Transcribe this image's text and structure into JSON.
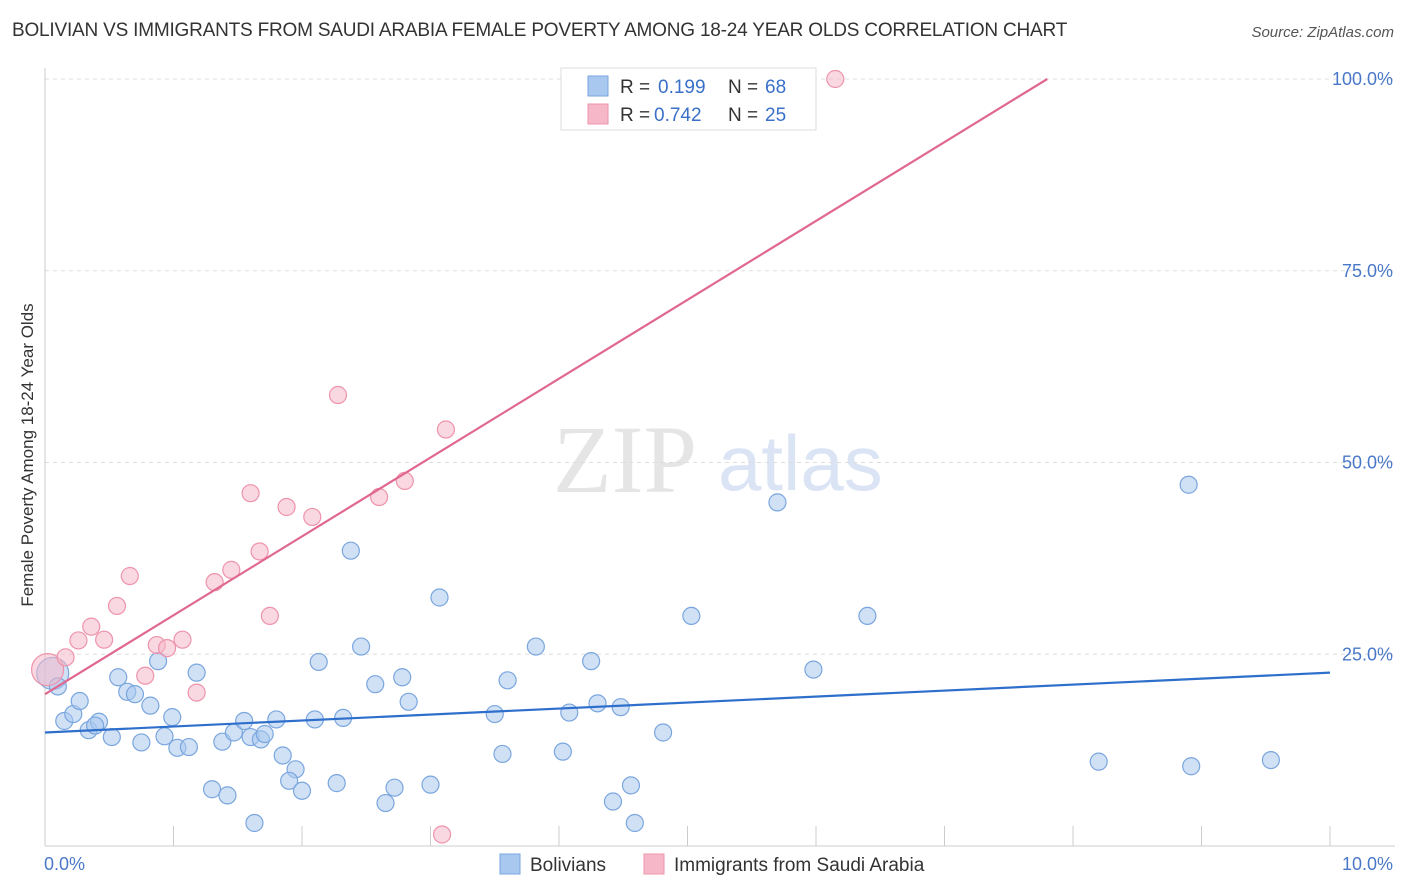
{
  "title": "BOLIVIAN VS IMMIGRANTS FROM SAUDI ARABIA FEMALE POVERTY AMONG 18-24 YEAR OLDS CORRELATION CHART",
  "source": "Source: ZipAtlas.com",
  "watermark": {
    "zip": "ZIP",
    "atlas": "atlas"
  },
  "colors": {
    "blue_fill": "#a9c8ef",
    "blue_stroke": "#7aa6de",
    "blue_line": "#2f6fcc",
    "pink_fill": "#f6b8c8",
    "pink_stroke": "#ee93ac",
    "pink_line": "#e0688f",
    "tick_text": "#4a78c8",
    "grid": "#dddddd"
  },
  "chart_data": {
    "type": "scatter",
    "title": "BOLIVIAN VS IMMIGRANTS FROM SAUDI ARABIA FEMALE POVERTY AMONG 18-24 YEAR OLDS CORRELATION CHART",
    "xlabel": "",
    "ylabel": "Female Poverty Among 18-24 Year Olds",
    "xlim": [
      0,
      10
    ],
    "ylim": [
      0,
      100
    ],
    "x_tick_labels": [
      "0.0%",
      "10.0%"
    ],
    "y_ticks": [
      25,
      50,
      75,
      100
    ],
    "y_tick_labels": [
      "25.0%",
      "50.0%",
      "75.0%",
      "100.0%"
    ],
    "grid": true,
    "legend_position": "top-center",
    "stats": [
      {
        "r_label": "R = ",
        "r_value": "0.199",
        "n_label": "N = ",
        "n_value": "68"
      },
      {
        "r_label": "R = ",
        "r_value": "0.742",
        "n_label": "N = ",
        "n_value": "25"
      }
    ],
    "series": [
      {
        "name": "Bolivians",
        "color": "#a9c8ef",
        "trend": {
          "x0": 0,
          "y0": 14.8,
          "x1": 10,
          "y1": 22.6
        },
        "points": [
          [
            0.06,
            22.5
          ],
          [
            0.1,
            20.8
          ],
          [
            0.15,
            16.3
          ],
          [
            0.22,
            17.2
          ],
          [
            0.27,
            18.9
          ],
          [
            0.34,
            15.1
          ],
          [
            0.42,
            16.2
          ],
          [
            0.39,
            15.7
          ],
          [
            0.52,
            14.2
          ],
          [
            0.57,
            22.0
          ],
          [
            0.64,
            20.1
          ],
          [
            0.7,
            19.8
          ],
          [
            0.75,
            13.5
          ],
          [
            0.82,
            18.3
          ],
          [
            0.88,
            24.1
          ],
          [
            0.93,
            14.3
          ],
          [
            0.99,
            16.8
          ],
          [
            1.03,
            12.8
          ],
          [
            1.12,
            12.9
          ],
          [
            1.18,
            22.6
          ],
          [
            1.3,
            7.4
          ],
          [
            1.42,
            6.6
          ],
          [
            1.38,
            13.6
          ],
          [
            1.47,
            14.8
          ],
          [
            1.55,
            16.3
          ],
          [
            1.6,
            14.2
          ],
          [
            1.68,
            13.9
          ],
          [
            1.71,
            14.6
          ],
          [
            1.85,
            11.8
          ],
          [
            1.95,
            10.0
          ],
          [
            1.9,
            8.5
          ],
          [
            2.0,
            7.2
          ],
          [
            2.1,
            16.5
          ],
          [
            2.13,
            24.0
          ],
          [
            2.27,
            8.2
          ],
          [
            2.38,
            38.5
          ],
          [
            2.46,
            26.0
          ],
          [
            2.57,
            21.1
          ],
          [
            2.65,
            5.6
          ],
          [
            2.72,
            7.6
          ],
          [
            2.78,
            22.0
          ],
          [
            2.83,
            18.8
          ],
          [
            3.0,
            8.0
          ],
          [
            3.07,
            32.4
          ],
          [
            3.5,
            17.2
          ],
          [
            3.56,
            12.0
          ],
          [
            3.6,
            21.6
          ],
          [
            3.82,
            26.0
          ],
          [
            4.03,
            12.3
          ],
          [
            4.08,
            17.4
          ],
          [
            4.25,
            24.1
          ],
          [
            4.3,
            18.6
          ],
          [
            4.42,
            5.8
          ],
          [
            4.48,
            18.1
          ],
          [
            4.56,
            7.9
          ],
          [
            4.59,
            3.0
          ],
          [
            4.81,
            14.8
          ],
          [
            5.03,
            30.0
          ],
          [
            5.7,
            44.8
          ],
          [
            5.98,
            23.0
          ],
          [
            6.4,
            30.0
          ],
          [
            8.2,
            11.0
          ],
          [
            8.9,
            47.1
          ],
          [
            8.92,
            10.4
          ],
          [
            9.54,
            11.2
          ],
          [
            2.32,
            16.7
          ],
          [
            1.8,
            16.5
          ],
          [
            1.63,
            3.0
          ]
        ]
      },
      {
        "name": "Immigrants from Saudi Arabia",
        "color": "#f6b8c8",
        "trend": {
          "x0": 0,
          "y0": 19.8,
          "x1": 7.8,
          "y1": 100.0
        },
        "points": [
          [
            0.02,
            23.0
          ],
          [
            0.16,
            24.6
          ],
          [
            0.26,
            26.8
          ],
          [
            0.36,
            28.6
          ],
          [
            0.46,
            26.9
          ],
          [
            0.56,
            31.3
          ],
          [
            0.66,
            35.2
          ],
          [
            0.78,
            22.2
          ],
          [
            0.87,
            26.2
          ],
          [
            0.95,
            25.8
          ],
          [
            1.07,
            26.9
          ],
          [
            1.18,
            20.0
          ],
          [
            1.32,
            34.4
          ],
          [
            1.45,
            36.0
          ],
          [
            1.6,
            46.0
          ],
          [
            1.67,
            38.4
          ],
          [
            1.75,
            30.0
          ],
          [
            1.88,
            44.2
          ],
          [
            2.08,
            42.9
          ],
          [
            2.28,
            58.8
          ],
          [
            2.6,
            45.5
          ],
          [
            2.8,
            47.6
          ],
          [
            3.09,
            1.5
          ],
          [
            3.12,
            54.3
          ],
          [
            6.15,
            100.0
          ]
        ]
      }
    ]
  }
}
